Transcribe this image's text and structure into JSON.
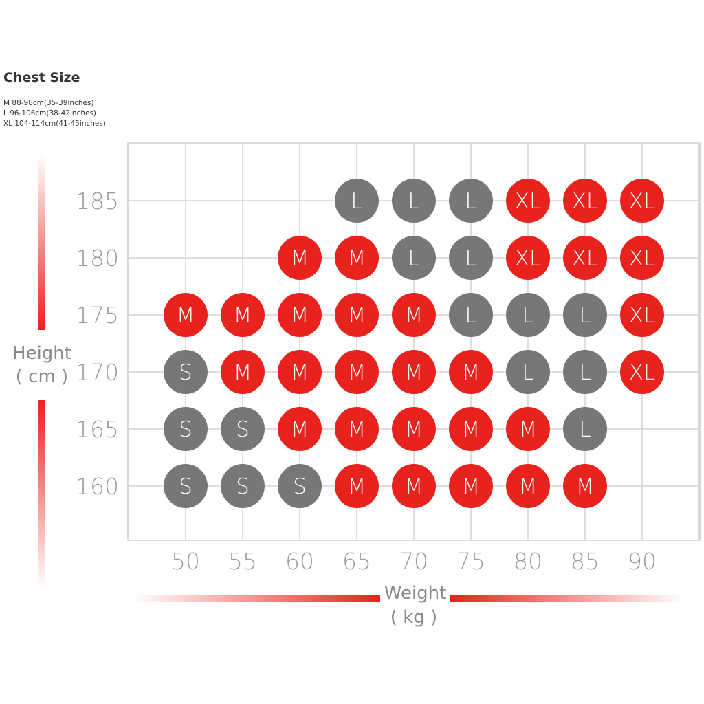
{
  "chest": {
    "title": "Chest Size",
    "lines": [
      "M 88-98cm(35-39inches)",
      "L 96-106cm(38-42inches)",
      "XL 104-114cm(41-45inches)"
    ]
  },
  "chart_data": {
    "type": "table",
    "xlabel": "Weight",
    "xunit": "( kg )",
    "ylabel": "Height",
    "yunit": "( cm )",
    "x": [
      50,
      55,
      60,
      65,
      70,
      75,
      80,
      85,
      90
    ],
    "y": [
      185,
      180,
      175,
      170,
      165,
      160
    ],
    "colors": {
      "S": "#777777",
      "M": "#e8221c",
      "L": "#777777",
      "XL": "#e8221c"
    },
    "grid": true,
    "cells": [
      {
        "x": 65,
        "y": 185,
        "size": "L"
      },
      {
        "x": 70,
        "y": 185,
        "size": "L"
      },
      {
        "x": 75,
        "y": 185,
        "size": "L"
      },
      {
        "x": 80,
        "y": 185,
        "size": "XL"
      },
      {
        "x": 85,
        "y": 185,
        "size": "XL"
      },
      {
        "x": 90,
        "y": 185,
        "size": "XL"
      },
      {
        "x": 60,
        "y": 180,
        "size": "M"
      },
      {
        "x": 65,
        "y": 180,
        "size": "M"
      },
      {
        "x": 70,
        "y": 180,
        "size": "L"
      },
      {
        "x": 75,
        "y": 180,
        "size": "L"
      },
      {
        "x": 80,
        "y": 180,
        "size": "XL"
      },
      {
        "x": 85,
        "y": 180,
        "size": "XL"
      },
      {
        "x": 90,
        "y": 180,
        "size": "XL"
      },
      {
        "x": 50,
        "y": 175,
        "size": "M"
      },
      {
        "x": 55,
        "y": 175,
        "size": "M"
      },
      {
        "x": 60,
        "y": 175,
        "size": "M"
      },
      {
        "x": 65,
        "y": 175,
        "size": "M"
      },
      {
        "x": 70,
        "y": 175,
        "size": "M"
      },
      {
        "x": 75,
        "y": 175,
        "size": "L"
      },
      {
        "x": 80,
        "y": 175,
        "size": "L"
      },
      {
        "x": 85,
        "y": 175,
        "size": "L"
      },
      {
        "x": 90,
        "y": 175,
        "size": "XL"
      },
      {
        "x": 50,
        "y": 170,
        "size": "S"
      },
      {
        "x": 55,
        "y": 170,
        "size": "M"
      },
      {
        "x": 60,
        "y": 170,
        "size": "M"
      },
      {
        "x": 65,
        "y": 170,
        "size": "M"
      },
      {
        "x": 70,
        "y": 170,
        "size": "M"
      },
      {
        "x": 75,
        "y": 170,
        "size": "M"
      },
      {
        "x": 80,
        "y": 170,
        "size": "L"
      },
      {
        "x": 85,
        "y": 170,
        "size": "L"
      },
      {
        "x": 90,
        "y": 170,
        "size": "XL"
      },
      {
        "x": 50,
        "y": 165,
        "size": "S"
      },
      {
        "x": 55,
        "y": 165,
        "size": "S"
      },
      {
        "x": 60,
        "y": 165,
        "size": "M"
      },
      {
        "x": 65,
        "y": 165,
        "size": "M"
      },
      {
        "x": 70,
        "y": 165,
        "size": "M"
      },
      {
        "x": 75,
        "y": 165,
        "size": "M"
      },
      {
        "x": 80,
        "y": 165,
        "size": "M"
      },
      {
        "x": 85,
        "y": 165,
        "size": "L"
      },
      {
        "x": 50,
        "y": 160,
        "size": "S"
      },
      {
        "x": 55,
        "y": 160,
        "size": "S"
      },
      {
        "x": 60,
        "y": 160,
        "size": "S"
      },
      {
        "x": 65,
        "y": 160,
        "size": "M"
      },
      {
        "x": 70,
        "y": 160,
        "size": "M"
      },
      {
        "x": 75,
        "y": 160,
        "size": "M"
      },
      {
        "x": 80,
        "y": 160,
        "size": "M"
      },
      {
        "x": 85,
        "y": 160,
        "size": "M"
      }
    ]
  }
}
